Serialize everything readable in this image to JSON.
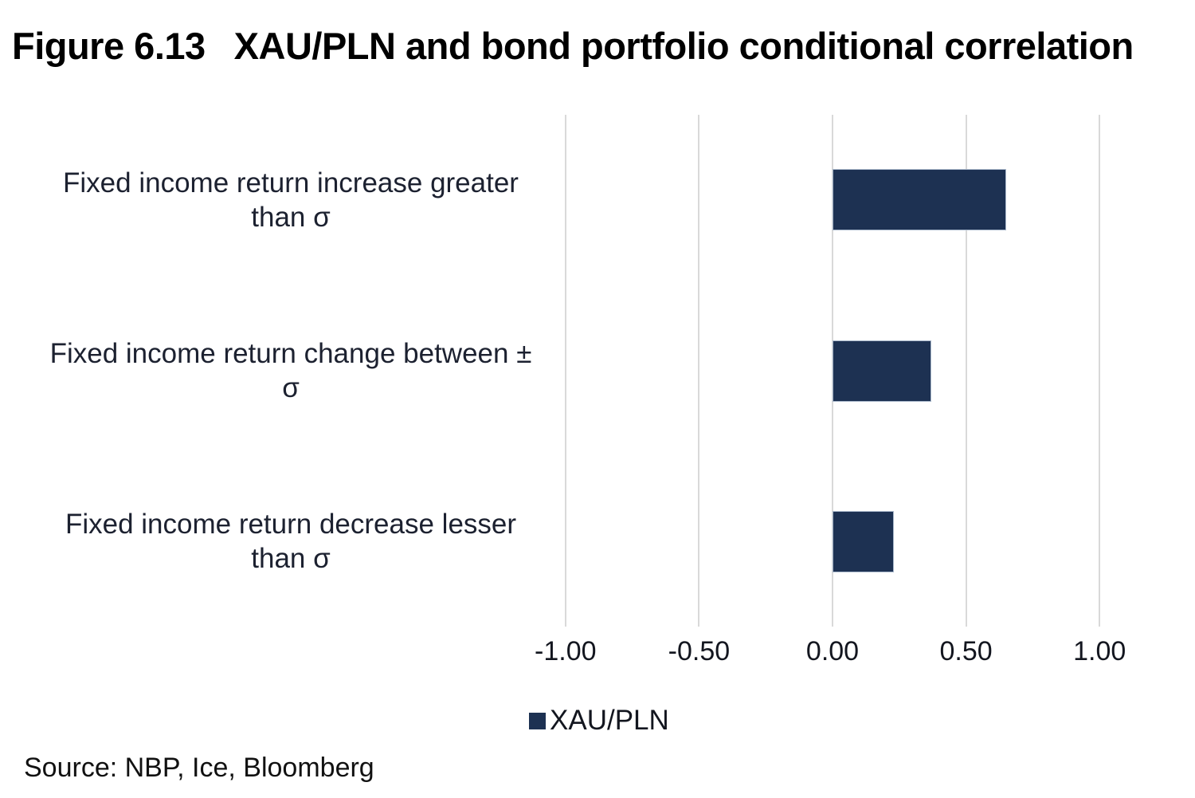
{
  "figure": {
    "label": "Figure 6.13",
    "title": "XAU/PLN and bond portfolio conditional correlation"
  },
  "source": "Source: NBP, Ice, Bloomberg",
  "legend": {
    "series_label": "XAU/PLN",
    "swatch_color": "#1d3152"
  },
  "chart_data": {
    "type": "bar",
    "orientation": "horizontal",
    "title": "XAU/PLN and bond portfolio conditional correlation",
    "categories": [
      {
        "label": "Fixed income return increase greater than σ",
        "lines": [
          "Fixed income return increase greater",
          "than σ"
        ]
      },
      {
        "label": "Fixed income return change between ± σ",
        "lines": [
          "Fixed income return change between ±",
          "σ"
        ]
      },
      {
        "label": "Fixed income return decrease lesser than σ",
        "lines": [
          "Fixed income return decrease lesser",
          "than σ"
        ]
      }
    ],
    "series": [
      {
        "name": "XAU/PLN",
        "values": [
          0.65,
          0.37,
          0.23
        ],
        "color": "#1d3152"
      }
    ],
    "xlabel": "",
    "ylabel": "",
    "xlim": [
      -1.25,
      1.25
    ],
    "ticks": [
      {
        "value": -1.0,
        "label": "-1.00"
      },
      {
        "value": -0.5,
        "label": "-0.50"
      },
      {
        "value": 0.0,
        "label": "0.00"
      },
      {
        "value": 0.5,
        "label": "0.50"
      },
      {
        "value": 1.0,
        "label": "1.00"
      }
    ],
    "grid": true,
    "gridline_color": "#d9d9d9",
    "legend_position": "bottom"
  }
}
